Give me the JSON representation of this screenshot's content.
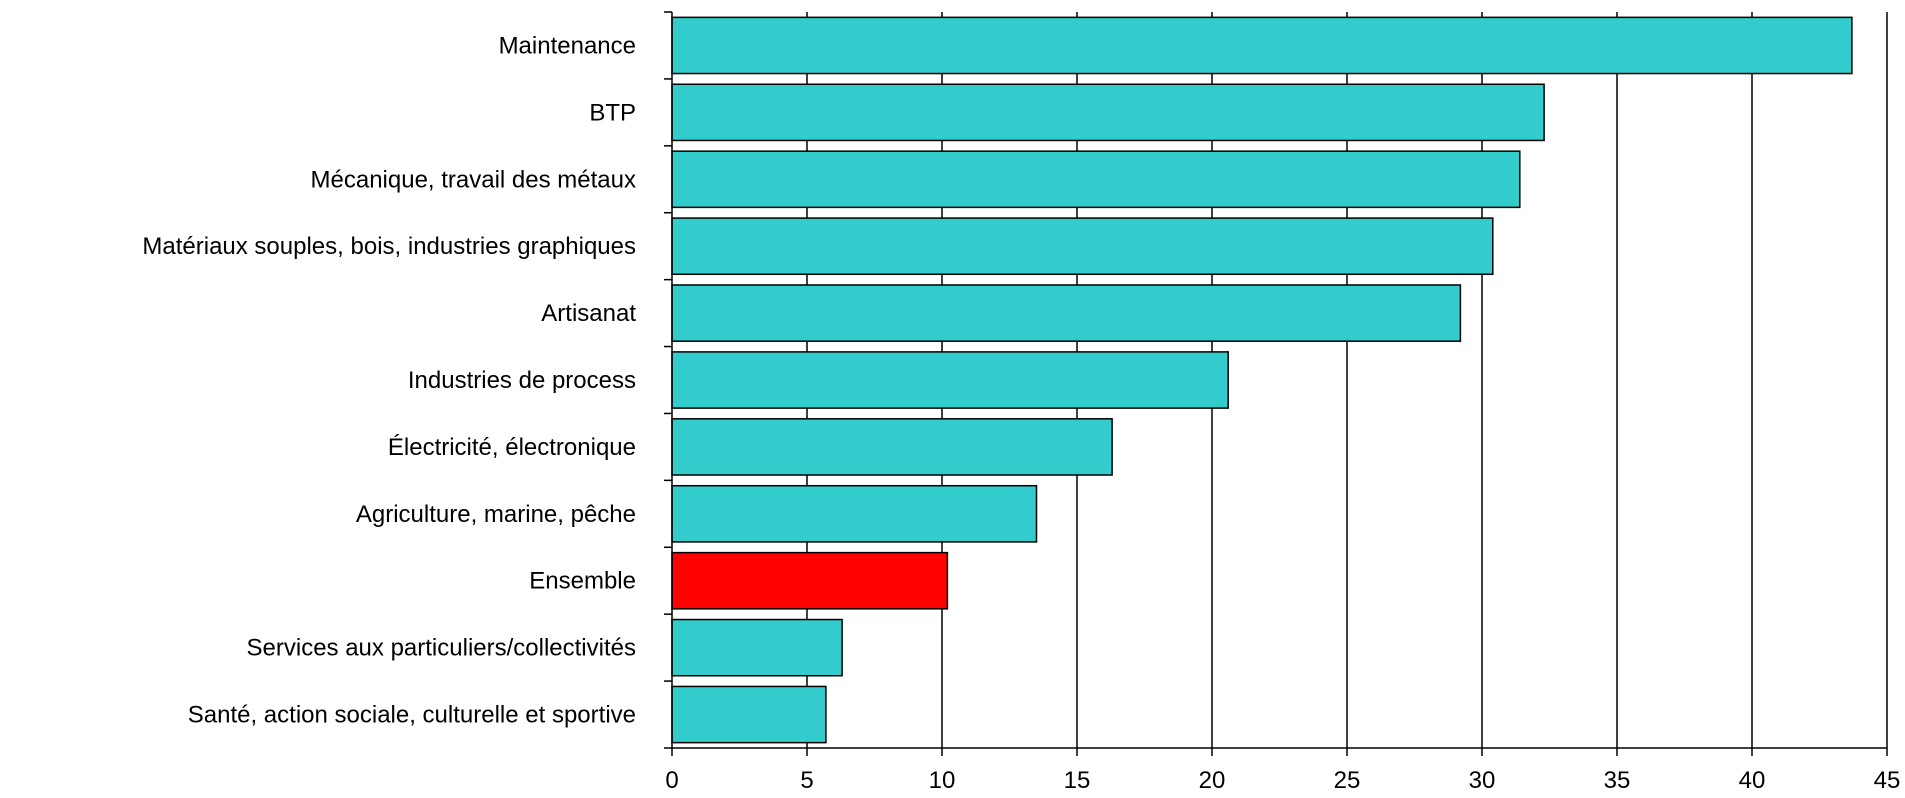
{
  "chart_data": {
    "type": "bar",
    "orientation": "horizontal",
    "categories": [
      "Maintenance",
      "BTP",
      "Mécanique, travail des métaux",
      "Matériaux souples, bois, industries graphiques",
      "Artisanat",
      "Industries de process",
      "Électricité, électronique",
      "Agriculture, marine, pêche",
      "Ensemble",
      "Services aux particuliers/collectivités",
      "Santé, action sociale, culturelle et sportive"
    ],
    "values": [
      43.7,
      32.3,
      31.4,
      30.4,
      29.2,
      20.6,
      16.3,
      13.5,
      10.2,
      6.3,
      5.7
    ],
    "xlim": [
      0,
      45
    ],
    "xticks": [
      0,
      5,
      10,
      15,
      20,
      25,
      30,
      35,
      40,
      45
    ],
    "xlabel": "",
    "ylabel": "",
    "grid": "vertical",
    "legend": "none",
    "colors": {
      "bar": "#33CCCC",
      "highlight": "#FF0000",
      "highlight_category": "Ensemble",
      "grid": "#000000",
      "border": "#000000"
    }
  }
}
